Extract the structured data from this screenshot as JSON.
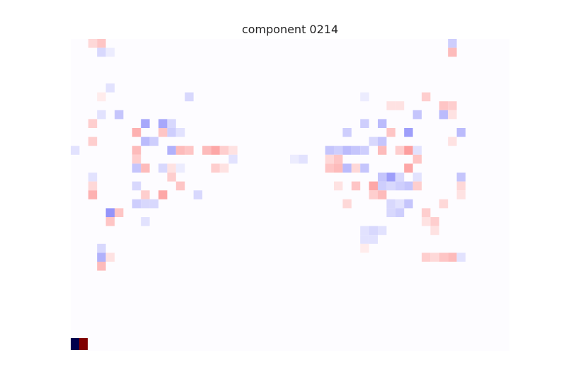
{
  "chart_data": {
    "type": "heatmap",
    "title": "component 0214",
    "axes": "off",
    "grid": false,
    "colormap": "seismic",
    "color_scale": {
      "low": "#00004c",
      "mid": "#ffffff",
      "high": "#800000"
    },
    "vmin": -1,
    "vmax": 1,
    "rows": 35,
    "cols": 50,
    "cells": [
      [
        0,
        2,
        0.2
      ],
      [
        0,
        3,
        0.3
      ],
      [
        0,
        43,
        -0.25
      ],
      [
        1,
        43,
        0.35
      ],
      [
        1,
        3,
        -0.2
      ],
      [
        1,
        4,
        -0.1
      ],
      [
        5,
        4,
        -0.15
      ],
      [
        6,
        3,
        0.1
      ],
      [
        6,
        13,
        -0.2
      ],
      [
        6,
        33,
        -0.1
      ],
      [
        6,
        40,
        0.25
      ],
      [
        7,
        42,
        0.3
      ],
      [
        7,
        43,
        0.25
      ],
      [
        7,
        36,
        0.15
      ],
      [
        7,
        37,
        0.15
      ],
      [
        8,
        3,
        -0.15
      ],
      [
        8,
        5,
        -0.3
      ],
      [
        8,
        42,
        -0.35
      ],
      [
        8,
        39,
        -0.3
      ],
      [
        8,
        43,
        0.15
      ],
      [
        9,
        2,
        0.25
      ],
      [
        9,
        8,
        -0.45
      ],
      [
        9,
        10,
        -0.45
      ],
      [
        9,
        11,
        -0.2
      ],
      [
        9,
        35,
        -0.35
      ],
      [
        9,
        33,
        -0.25
      ],
      [
        10,
        7,
        0.4
      ],
      [
        10,
        10,
        0.3
      ],
      [
        10,
        11,
        -0.25
      ],
      [
        10,
        12,
        -0.15
      ],
      [
        10,
        31,
        -0.25
      ],
      [
        10,
        36,
        0.3
      ],
      [
        10,
        38,
        -0.5
      ],
      [
        10,
        44,
        -0.35
      ],
      [
        11,
        2,
        0.25
      ],
      [
        11,
        8,
        -0.35
      ],
      [
        11,
        9,
        -0.25
      ],
      [
        11,
        35,
        -0.3
      ],
      [
        11,
        34,
        -0.2
      ],
      [
        11,
        43,
        0.15
      ],
      [
        12,
        0,
        -0.15
      ],
      [
        12,
        7,
        0.35
      ],
      [
        12,
        11,
        -0.4
      ],
      [
        12,
        12,
        0.35
      ],
      [
        12,
        13,
        0.3
      ],
      [
        12,
        15,
        0.35
      ],
      [
        12,
        16,
        0.45
      ],
      [
        12,
        17,
        0.25
      ],
      [
        12,
        18,
        0.15
      ],
      [
        12,
        29,
        -0.3
      ],
      [
        12,
        30,
        -0.25
      ],
      [
        12,
        31,
        -0.35
      ],
      [
        12,
        32,
        -0.3
      ],
      [
        12,
        33,
        -0.25
      ],
      [
        12,
        35,
        0.35
      ],
      [
        12,
        37,
        0.25
      ],
      [
        12,
        38,
        0.5
      ],
      [
        12,
        39,
        -0.15
      ],
      [
        13,
        7,
        0.25
      ],
      [
        13,
        18,
        -0.15
      ],
      [
        13,
        25,
        -0.1
      ],
      [
        13,
        26,
        -0.15
      ],
      [
        13,
        30,
        0.3
      ],
      [
        13,
        29,
        0.2
      ],
      [
        13,
        39,
        0.3
      ],
      [
        14,
        7,
        -0.3
      ],
      [
        14,
        8,
        0.35
      ],
      [
        14,
        10,
        -0.2
      ],
      [
        14,
        11,
        0.15
      ],
      [
        14,
        12,
        -0.1
      ],
      [
        14,
        16,
        0.25
      ],
      [
        14,
        17,
        0.15
      ],
      [
        14,
        29,
        0.3
      ],
      [
        14,
        30,
        0.35
      ],
      [
        14,
        31,
        -0.35
      ],
      [
        14,
        32,
        0.2
      ],
      [
        14,
        33,
        -0.3
      ],
      [
        14,
        38,
        0.45
      ],
      [
        15,
        2,
        -0.15
      ],
      [
        15,
        11,
        0.25
      ],
      [
        15,
        36,
        -0.5
      ],
      [
        15,
        35,
        -0.3
      ],
      [
        15,
        37,
        -0.2
      ],
      [
        15,
        39,
        -0.15
      ],
      [
        15,
        44,
        -0.3
      ],
      [
        16,
        2,
        0.2
      ],
      [
        16,
        7,
        -0.2
      ],
      [
        16,
        12,
        0.3
      ],
      [
        16,
        30,
        0.15
      ],
      [
        16,
        32,
        0.3
      ],
      [
        16,
        34,
        0.45
      ],
      [
        16,
        35,
        -0.25
      ],
      [
        16,
        36,
        -0.2
      ],
      [
        16,
        37,
        -0.25
      ],
      [
        16,
        38,
        -0.3
      ],
      [
        16,
        39,
        0.25
      ],
      [
        16,
        44,
        0.2
      ],
      [
        17,
        2,
        0.4
      ],
      [
        17,
        8,
        0.25
      ],
      [
        17,
        10,
        0.45
      ],
      [
        17,
        14,
        -0.2
      ],
      [
        17,
        35,
        0.35
      ],
      [
        17,
        34,
        0.25
      ],
      [
        17,
        44,
        0.15
      ],
      [
        18,
        7,
        -0.25
      ],
      [
        18,
        8,
        -0.2
      ],
      [
        18,
        9,
        -0.2
      ],
      [
        18,
        31,
        0.2
      ],
      [
        18,
        36,
        -0.2
      ],
      [
        18,
        37,
        -0.15
      ],
      [
        18,
        38,
        -0.3
      ],
      [
        18,
        42,
        0.2
      ],
      [
        19,
        4,
        -0.55
      ],
      [
        19,
        5,
        0.3
      ],
      [
        19,
        36,
        -0.2
      ],
      [
        19,
        37,
        -0.25
      ],
      [
        19,
        40,
        0.25
      ],
      [
        20,
        4,
        0.3
      ],
      [
        20,
        8,
        -0.15
      ],
      [
        20,
        41,
        0.25
      ],
      [
        20,
        40,
        0.15
      ],
      [
        21,
        33,
        -0.15
      ],
      [
        21,
        34,
        -0.2
      ],
      [
        21,
        35,
        -0.15
      ],
      [
        21,
        41,
        0.15
      ],
      [
        22,
        34,
        -0.15
      ],
      [
        22,
        33,
        -0.15
      ],
      [
        23,
        3,
        -0.2
      ],
      [
        23,
        33,
        0.1
      ],
      [
        24,
        3,
        -0.4
      ],
      [
        24,
        4,
        0.15
      ],
      [
        24,
        40,
        0.25
      ],
      [
        24,
        41,
        0.2
      ],
      [
        24,
        42,
        0.3
      ],
      [
        24,
        43,
        0.35
      ],
      [
        24,
        44,
        -0.15
      ],
      [
        25,
        3,
        0.35
      ]
    ],
    "colorbar_swatches": [
      -1,
      1
    ]
  }
}
